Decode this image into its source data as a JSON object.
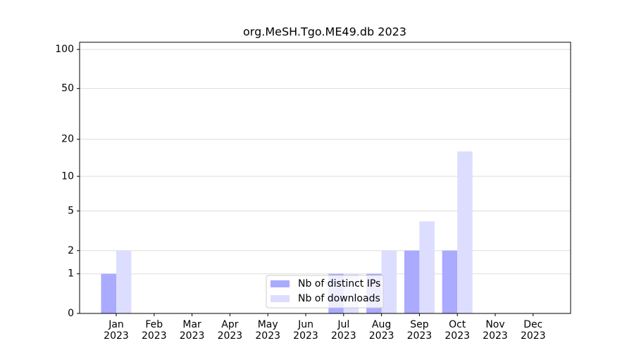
{
  "chart_data": {
    "type": "bar",
    "title": "org.MeSH.Tgo.ME49.db 2023",
    "categories": [
      "Jan\n2023",
      "Feb\n2023",
      "Mar\n2023",
      "Apr\n2023",
      "May\n2023",
      "Jun\n2023",
      "Jul\n2023",
      "Aug\n2023",
      "Sep\n2023",
      "Oct\n2023",
      "Nov\n2023",
      "Dec\n2023"
    ],
    "series": [
      {
        "name": "Nb of distinct IPs",
        "color": "#aaaaff",
        "values": [
          1,
          0,
          0,
          0,
          0,
          0,
          1,
          1,
          2,
          2,
          0,
          0
        ]
      },
      {
        "name": "Nb of downloads",
        "color": "#ddddff",
        "values": [
          2,
          0,
          0,
          0,
          0,
          0,
          1,
          2,
          4,
          16,
          0,
          0
        ]
      }
    ],
    "yscale": "log1p",
    "ylim": [
      0,
      113.5
    ],
    "yticks": [
      0,
      1,
      2,
      5,
      10,
      20,
      50,
      100
    ],
    "grid": true,
    "legend": "lower center"
  }
}
